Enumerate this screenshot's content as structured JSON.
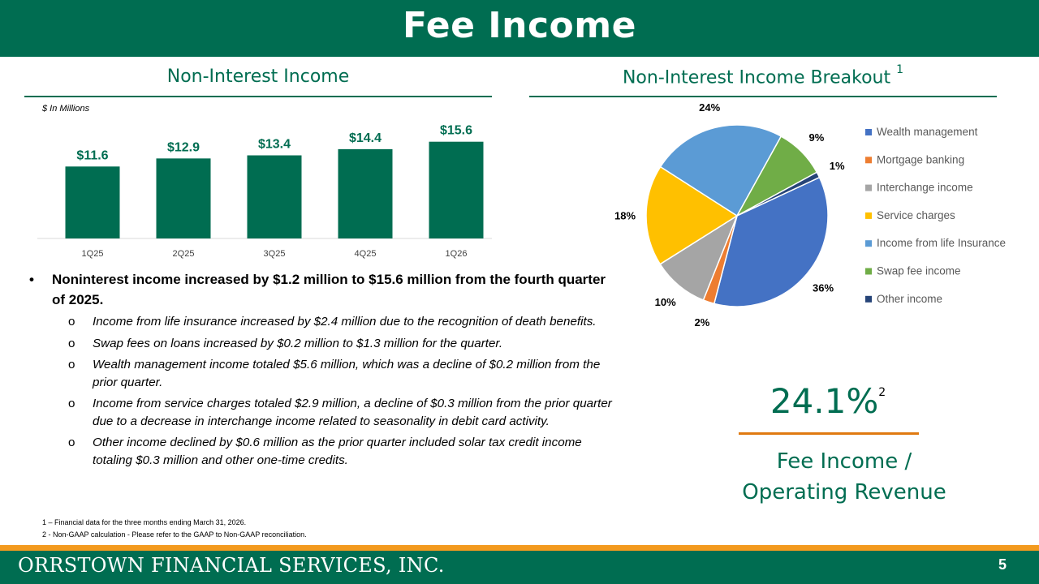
{
  "header": {
    "title": "Fee Income"
  },
  "left_section": {
    "title": "Non-Interest Income",
    "units_note": "$ In Millions"
  },
  "right_section": {
    "title": "Non-Interest Income Breakout",
    "title_footnote": "1"
  },
  "chart_data": [
    {
      "type": "bar",
      "categories": [
        "1Q25",
        "2Q25",
        "3Q25",
        "4Q25",
        "1Q26"
      ],
      "values": [
        11.6,
        12.9,
        13.4,
        14.4,
        15.6
      ],
      "data_labels": [
        "$11.6",
        "$12.9",
        "$13.4",
        "$14.4",
        "$15.6"
      ],
      "ylim": [
        0,
        17
      ],
      "bar_color": "#006d51",
      "label_color": "#006d51",
      "grid": false
    },
    {
      "type": "pie",
      "labels": [
        "Wealth management",
        "Mortgage banking",
        "Interchange income",
        "Service charges",
        "Income from life Insurance",
        "Swap fee income",
        "Other income"
      ],
      "values": [
        36,
        2,
        10,
        18,
        24,
        9,
        1
      ],
      "data_labels": [
        "36%",
        "2%",
        "10%",
        "18%",
        "24%",
        "9%",
        "1%"
      ],
      "colors": [
        "#4472c4",
        "#ed7d31",
        "#a5a5a5",
        "#ffc000",
        "#5b9bd5",
        "#70ad47",
        "#264478"
      ],
      "legend_position": "right"
    }
  ],
  "bullets": {
    "main": "Noninterest income increased by $1.2 million to $15.6 million from the fourth quarter of 2025.",
    "main_marker": "•",
    "sub_marker": "o",
    "sub": [
      "Income from life insurance increased by $2.4 million due to the recognition of death benefits.",
      "Swap fees on loans increased by $0.2 million to $1.3 million for the quarter.",
      "Wealth management income totaled $5.6 million, which was a decline of $0.2 million from the prior quarter.",
      "Income from service charges totaled $2.9 million, a decline of $0.3 million from the prior quarter due to a decrease in interchange income related to seasonality in debit card activity.",
      "Other income declined by $0.6 million as the prior quarter included solar tax credit income totaling $0.3 million and other one-time credits."
    ]
  },
  "footnotes": [
    "1 – Financial data for the three months ending March 31, 2026.",
    "2 - Non-GAAP calculation - Please refer to the GAAP to Non-GAAP reconciliation."
  ],
  "stat": {
    "value": "24.1%",
    "footnote": "2",
    "label_line1": "Fee Income /",
    "label_line2": "Operating Revenue"
  },
  "footer": {
    "company": "ORRSTOWN FINANCIAL SERVICES, INC.",
    "page_number": "5"
  },
  "colors": {
    "brand_green": "#006d51",
    "accent_orange": "#f39a1e"
  }
}
